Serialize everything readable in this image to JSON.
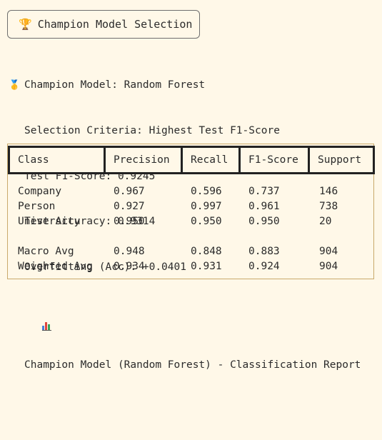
{
  "header": {
    "icon": "trophy-icon",
    "title": "Champion Model Selection"
  },
  "summary": {
    "champion_icon": "medal-icon",
    "champion_line": "Champion Model: Random Forest",
    "criteria_line": "Selection Criteria: Highest Test F1-Score",
    "f1_line": "Test F1-Score: 0.9245",
    "accuracy_line": "Test Accuracy: 0.9314",
    "overfitting_line": "Overfitting (Acc): +0.0401",
    "report_icon": "bar-chart-icon",
    "report_title": "Champion Model (Random Forest) - Classification Report"
  },
  "table": {
    "headers": [
      "Class",
      "Precision",
      "Recall",
      "F1-Score",
      "Support"
    ],
    "rows": [
      [
        "Company",
        "0.967",
        "0.596",
        "0.737",
        "146"
      ],
      [
        "Person",
        "0.927",
        "0.997",
        "0.961",
        "738"
      ],
      [
        "University",
        "0.950",
        "0.950",
        "0.950",
        "20"
      ],
      [
        "Macro Avg",
        "0.948",
        "0.848",
        "0.883",
        "904"
      ],
      [
        "Weighted Avg",
        "0.934",
        "0.931",
        "0.924",
        "904"
      ]
    ]
  },
  "colors": {
    "background": "#fff8e8",
    "border_accent": "#c9a96b",
    "header_border": "#222222"
  }
}
